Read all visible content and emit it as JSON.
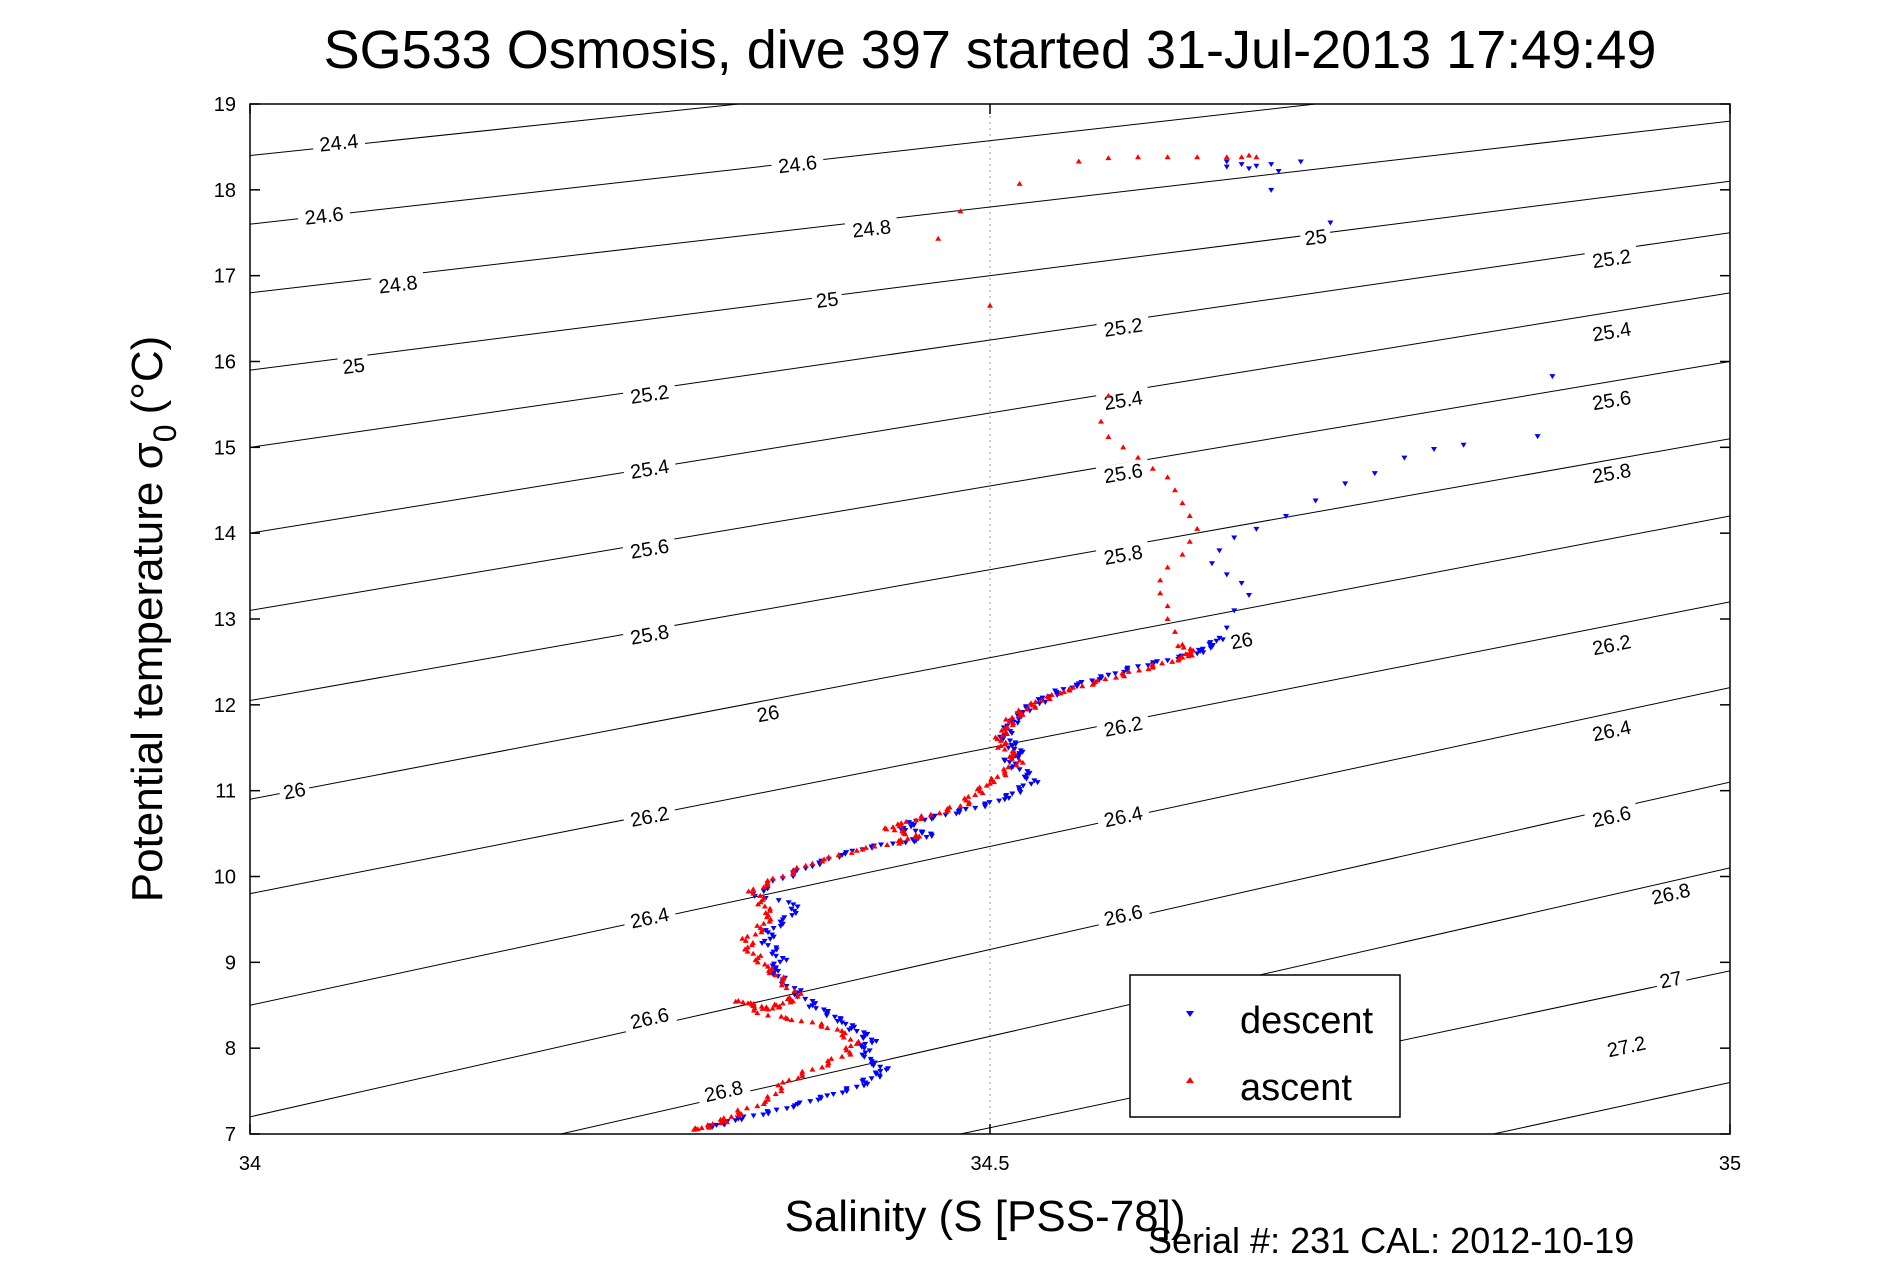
{
  "chart_data": {
    "type": "scatter",
    "title": "SG533 Osmosis, dive 397 started 31-Jul-2013 17:49:49",
    "xlabel": "Salinity (S [PSS-78])",
    "ylabel_main": "Potential temperature σ",
    "ylabel_sub": "0",
    "ylabel_unit": "(°C)",
    "xlim": [
      34,
      35
    ],
    "ylim": [
      7,
      19
    ],
    "xticks": [
      34,
      34.5,
      35
    ],
    "xtick_labels": [
      "34",
      "34.5",
      "35"
    ],
    "yticks": [
      7,
      8,
      9,
      10,
      11,
      12,
      13,
      14,
      15,
      16,
      17,
      18,
      19
    ],
    "ytick_labels": [
      "7",
      "8",
      "9",
      "10",
      "11",
      "12",
      "13",
      "14",
      "15",
      "16",
      "17",
      "18",
      "19"
    ],
    "grid": "x-only",
    "legend_position": "bottom-right",
    "footer": "Serial #: 231  CAL: 2012-10-19",
    "contours": [
      {
        "label": "24.4",
        "segment": [
          [
            34.0,
            18.4
          ],
          [
            34.33,
            19.0
          ]
        ],
        "labels_at": [
          [
            34.06,
            18.55
          ]
        ]
      },
      {
        "label": "24.6",
        "segment": [
          [
            34.0,
            17.6
          ],
          [
            34.72,
            19.0
          ]
        ],
        "labels_at": [
          [
            34.05,
            17.7
          ],
          [
            34.37,
            18.3
          ]
        ]
      },
      {
        "label": "24.8",
        "segment": [
          [
            34.0,
            16.8
          ],
          [
            35.0,
            18.8
          ]
        ],
        "labels_at": [
          [
            34.1,
            16.9
          ],
          [
            34.42,
            17.55
          ]
        ]
      },
      {
        "label": "25",
        "segment": [
          [
            34.0,
            15.9
          ],
          [
            35.0,
            18.1
          ]
        ],
        "labels_at": [
          [
            34.07,
            15.95
          ],
          [
            34.39,
            16.72
          ],
          [
            34.72,
            17.45
          ]
        ]
      },
      {
        "label": "25.2",
        "segment": [
          [
            34.0,
            15.0
          ],
          [
            35.0,
            17.5
          ]
        ],
        "labels_at": [
          [
            34.27,
            15.62
          ],
          [
            34.59,
            16.4
          ],
          [
            34.92,
            17.2
          ]
        ]
      },
      {
        "label": "25.4",
        "segment": [
          [
            34.0,
            14.0
          ],
          [
            35.0,
            16.8
          ]
        ],
        "labels_at": [
          [
            34.27,
            14.75
          ],
          [
            34.59,
            15.55
          ],
          [
            34.92,
            16.35
          ]
        ]
      },
      {
        "label": "25.6",
        "segment": [
          [
            34.0,
            13.1
          ],
          [
            35.0,
            16.0
          ]
        ],
        "labels_at": [
          [
            34.27,
            13.82
          ],
          [
            34.59,
            14.7
          ],
          [
            34.92,
            15.55
          ]
        ]
      },
      {
        "label": "25.8",
        "segment": [
          [
            34.0,
            12.05
          ],
          [
            35.0,
            15.1
          ]
        ],
        "labels_at": [
          [
            34.27,
            12.82
          ],
          [
            34.59,
            13.75
          ],
          [
            34.92,
            14.7
          ]
        ]
      },
      {
        "label": "26",
        "segment": [
          [
            34.0,
            10.9
          ],
          [
            35.0,
            14.2
          ]
        ],
        "labels_at": [
          [
            34.03,
            11.0
          ],
          [
            34.35,
            11.9
          ],
          [
            34.67,
            12.75
          ]
        ]
      },
      {
        "label": "26.2",
        "segment": [
          [
            34.0,
            9.8
          ],
          [
            35.0,
            13.2
          ]
        ],
        "labels_at": [
          [
            34.27,
            10.7
          ],
          [
            34.59,
            11.75
          ],
          [
            34.92,
            12.7
          ]
        ]
      },
      {
        "label": "26.4",
        "segment": [
          [
            34.0,
            8.5
          ],
          [
            35.0,
            12.2
          ]
        ],
        "labels_at": [
          [
            34.27,
            9.52
          ],
          [
            34.59,
            10.7
          ],
          [
            34.92,
            11.7
          ]
        ]
      },
      {
        "label": "26.6",
        "segment": [
          [
            34.0,
            7.2
          ],
          [
            35.0,
            11.1
          ]
        ],
        "labels_at": [
          [
            34.27,
            8.35
          ],
          [
            34.59,
            9.55
          ],
          [
            34.92,
            10.7
          ]
        ]
      },
      {
        "label": "26.8",
        "segment": [
          [
            34.21,
            7.0
          ],
          [
            35.0,
            10.1
          ]
        ],
        "labels_at": [
          [
            34.32,
            7.5
          ],
          [
            34.63,
            8.58
          ],
          [
            34.96,
            9.8
          ]
        ]
      },
      {
        "label": "27",
        "segment": [
          [
            34.48,
            7.0
          ],
          [
            35.0,
            8.9
          ]
        ],
        "labels_at": [
          [
            34.96,
            8.8
          ]
        ]
      },
      {
        "label": "27.2",
        "segment": [
          [
            34.84,
            7.0
          ],
          [
            35.0,
            7.6
          ]
        ],
        "labels_at": [
          [
            34.93,
            8.02
          ]
        ]
      }
    ],
    "series": [
      {
        "name": "descent",
        "color": "#0000ff",
        "marker": "triangle-down",
        "points": [
          [
            34.66,
            18.33
          ],
          [
            34.67,
            18.3
          ],
          [
            34.68,
            18.28
          ],
          [
            34.69,
            18.3
          ],
          [
            34.695,
            18.22
          ],
          [
            34.71,
            18.33
          ],
          [
            34.66,
            18.27
          ],
          [
            34.675,
            18.25
          ],
          [
            34.69,
            18.0
          ],
          [
            34.73,
            17.62
          ],
          [
            34.88,
            15.83
          ],
          [
            34.87,
            15.13
          ],
          [
            34.82,
            15.03
          ],
          [
            34.8,
            14.98
          ],
          [
            34.78,
            14.88
          ],
          [
            34.76,
            14.7
          ],
          [
            34.74,
            14.58
          ],
          [
            34.72,
            14.38
          ],
          [
            34.7,
            14.2
          ],
          [
            34.68,
            14.05
          ],
          [
            34.665,
            13.95
          ],
          [
            34.655,
            13.8
          ],
          [
            34.65,
            13.65
          ],
          [
            34.66,
            13.52
          ],
          [
            34.67,
            13.42
          ],
          [
            34.675,
            13.28
          ],
          [
            34.665,
            13.1
          ],
          [
            34.66,
            12.9
          ],
          [
            34.655,
            12.78
          ],
          [
            34.65,
            12.68
          ],
          [
            34.64,
            12.6
          ],
          [
            34.62,
            12.52
          ],
          [
            34.6,
            12.45
          ],
          [
            34.58,
            12.35
          ],
          [
            34.56,
            12.25
          ],
          [
            34.545,
            12.15
          ],
          [
            34.535,
            12.05
          ],
          [
            34.525,
            11.95
          ],
          [
            34.52,
            11.85
          ],
          [
            34.515,
            11.78
          ],
          [
            34.51,
            11.65
          ],
          [
            34.515,
            11.52
          ],
          [
            34.52,
            11.42
          ],
          [
            34.51,
            11.35
          ],
          [
            34.52,
            11.25
          ],
          [
            34.53,
            11.12
          ],
          [
            34.52,
            11.0
          ],
          [
            34.51,
            10.9
          ],
          [
            34.49,
            10.8
          ],
          [
            34.47,
            10.72
          ],
          [
            34.45,
            10.65
          ],
          [
            34.44,
            10.55
          ],
          [
            34.46,
            10.5
          ],
          [
            34.45,
            10.42
          ],
          [
            34.42,
            10.35
          ],
          [
            34.4,
            10.25
          ],
          [
            34.38,
            10.12
          ],
          [
            34.36,
            9.98
          ],
          [
            34.34,
            9.8
          ],
          [
            34.37,
            9.65
          ],
          [
            34.36,
            9.5
          ],
          [
            34.35,
            9.35
          ],
          [
            34.35,
            9.2
          ],
          [
            34.36,
            9.05
          ],
          [
            34.355,
            8.92
          ],
          [
            34.36,
            8.8
          ],
          [
            34.37,
            8.65
          ],
          [
            34.38,
            8.5
          ],
          [
            34.39,
            8.4
          ],
          [
            34.4,
            8.3
          ],
          [
            34.41,
            8.2
          ],
          [
            34.42,
            8.1
          ],
          [
            34.415,
            8.0
          ],
          [
            34.42,
            7.85
          ],
          [
            34.43,
            7.75
          ],
          [
            34.42,
            7.65
          ],
          [
            34.41,
            7.55
          ],
          [
            34.39,
            7.45
          ],
          [
            34.37,
            7.35
          ],
          [
            34.35,
            7.25
          ],
          [
            34.33,
            7.18
          ],
          [
            34.32,
            7.12
          ],
          [
            34.31,
            7.08
          ]
        ]
      },
      {
        "name": "ascent",
        "color": "#ff0000",
        "marker": "triangle-up",
        "points": [
          [
            34.56,
            18.33
          ],
          [
            34.58,
            18.37
          ],
          [
            34.6,
            18.38
          ],
          [
            34.62,
            18.38
          ],
          [
            34.64,
            18.38
          ],
          [
            34.66,
            18.38
          ],
          [
            34.67,
            18.38
          ],
          [
            34.675,
            18.4
          ],
          [
            34.68,
            18.38
          ],
          [
            34.52,
            18.07
          ],
          [
            34.48,
            17.75
          ],
          [
            34.465,
            17.43
          ],
          [
            34.5,
            16.65
          ],
          [
            34.58,
            15.6
          ],
          [
            34.575,
            15.3
          ],
          [
            34.58,
            15.12
          ],
          [
            34.59,
            15.0
          ],
          [
            34.6,
            14.88
          ],
          [
            34.61,
            14.75
          ],
          [
            34.62,
            14.65
          ],
          [
            34.625,
            14.5
          ],
          [
            34.63,
            14.35
          ],
          [
            34.635,
            14.2
          ],
          [
            34.64,
            14.05
          ],
          [
            34.635,
            13.9
          ],
          [
            34.63,
            13.75
          ],
          [
            34.62,
            13.6
          ],
          [
            34.615,
            13.45
          ],
          [
            34.615,
            13.3
          ],
          [
            34.62,
            13.15
          ],
          [
            34.62,
            13.0
          ],
          [
            34.625,
            12.85
          ],
          [
            34.63,
            12.7
          ],
          [
            34.635,
            12.6
          ],
          [
            34.63,
            12.55
          ],
          [
            34.61,
            12.45
          ],
          [
            34.59,
            12.35
          ],
          [
            34.57,
            12.25
          ],
          [
            34.55,
            12.15
          ],
          [
            34.535,
            12.05
          ],
          [
            34.525,
            11.95
          ],
          [
            34.515,
            11.85
          ],
          [
            34.51,
            11.72
          ],
          [
            34.505,
            11.6
          ],
          [
            34.51,
            11.48
          ],
          [
            34.52,
            11.35
          ],
          [
            34.51,
            11.2
          ],
          [
            34.5,
            11.08
          ],
          [
            34.49,
            10.95
          ],
          [
            34.48,
            10.82
          ],
          [
            34.46,
            10.72
          ],
          [
            34.44,
            10.62
          ],
          [
            34.43,
            10.55
          ],
          [
            34.45,
            10.48
          ],
          [
            34.44,
            10.4
          ],
          [
            34.41,
            10.3
          ],
          [
            34.38,
            10.15
          ],
          [
            34.36,
            10.0
          ],
          [
            34.34,
            9.85
          ],
          [
            34.345,
            9.7
          ],
          [
            34.35,
            9.55
          ],
          [
            34.345,
            9.4
          ],
          [
            34.335,
            9.25
          ],
          [
            34.34,
            9.1
          ],
          [
            34.35,
            8.95
          ],
          [
            34.36,
            8.8
          ],
          [
            34.37,
            8.6
          ],
          [
            34.36,
            8.52
          ],
          [
            34.35,
            8.45
          ],
          [
            34.34,
            8.5
          ],
          [
            34.33,
            8.55
          ],
          [
            34.35,
            8.38
          ],
          [
            34.38,
            8.3
          ],
          [
            34.4,
            8.2
          ],
          [
            34.41,
            8.05
          ],
          [
            34.4,
            7.9
          ],
          [
            34.38,
            7.75
          ],
          [
            34.36,
            7.6
          ],
          [
            34.35,
            7.4
          ],
          [
            34.33,
            7.25
          ],
          [
            34.32,
            7.15
          ],
          [
            34.31,
            7.08
          ],
          [
            34.3,
            7.05
          ]
        ]
      }
    ]
  }
}
